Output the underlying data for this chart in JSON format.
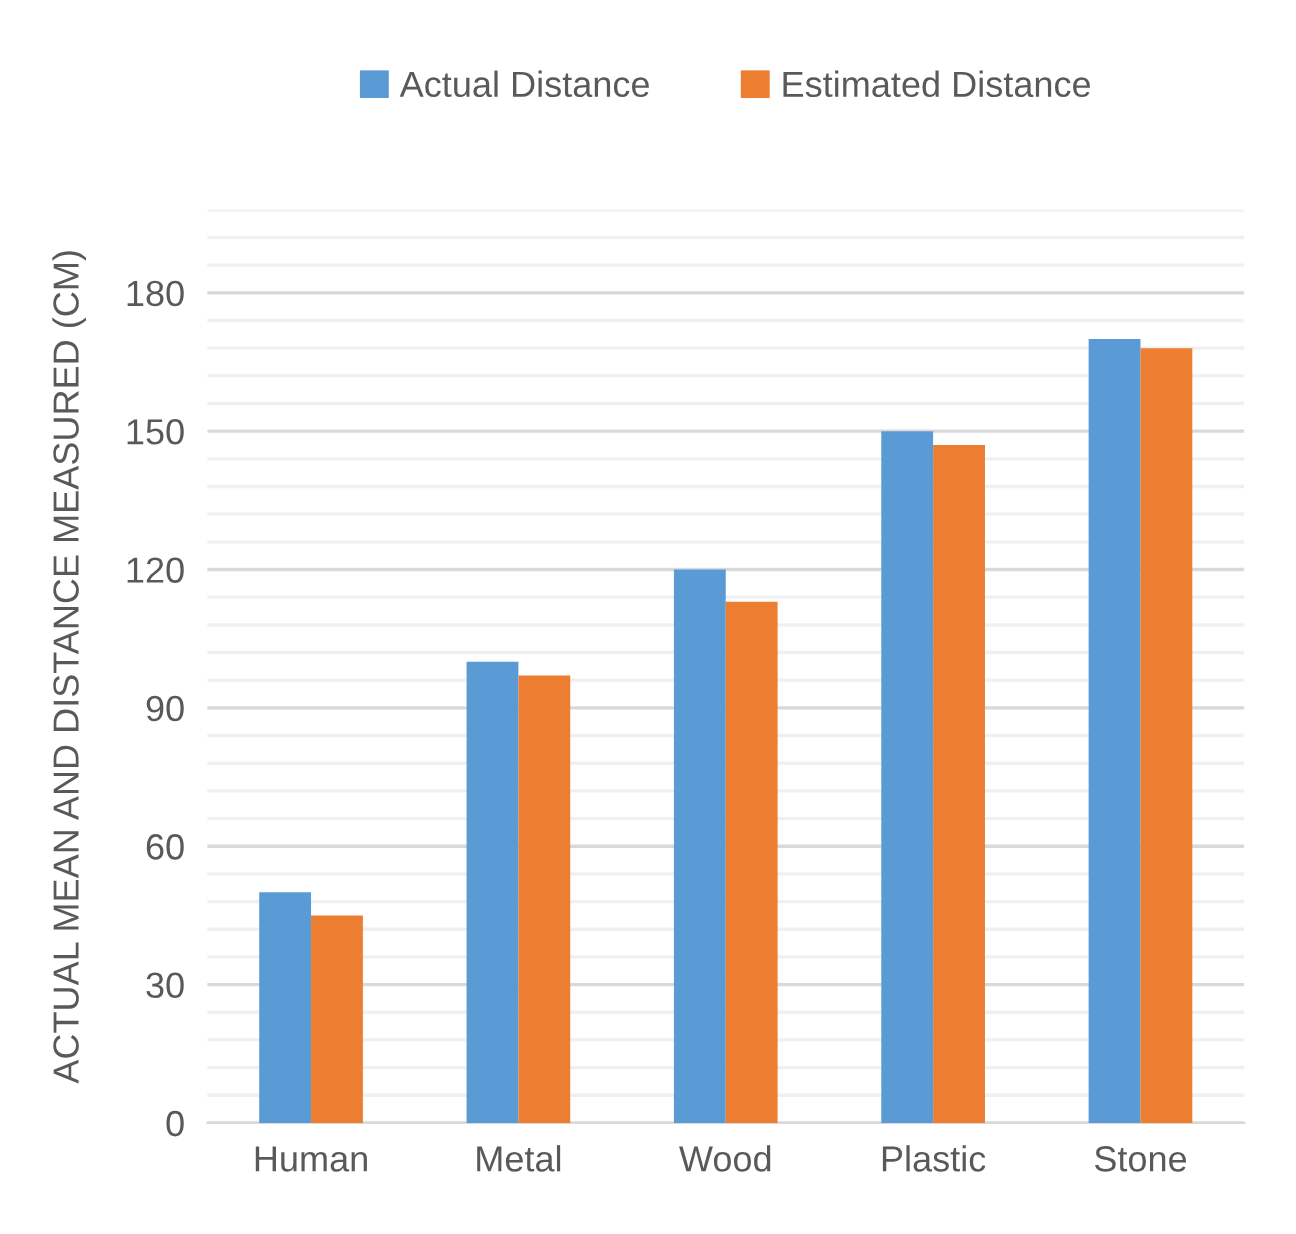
{
  "chart_data": {
    "type": "bar",
    "ylabel": "ACTUAL MEAN AND DISTANCE MEASURED (CM)",
    "categories": [
      "Human",
      "Metal",
      "Wood",
      "Plastic",
      "Stone"
    ],
    "series": [
      {
        "name": "Actual Distance",
        "color": "#5b9bd5",
        "values": [
          50,
          100,
          120,
          150,
          170
        ]
      },
      {
        "name": "Estimated Distance",
        "color": "#ed7d31",
        "values": [
          45,
          97,
          113,
          147,
          168
        ]
      }
    ],
    "ylim": [
      0,
      198
    ],
    "yticks": [
      0,
      {
        "value": 6,
        "label": null
      },
      {
        "value": 12,
        "label": null
      },
      {
        "value": 18,
        "label": null
      },
      {
        "value": 24,
        "label": null
      },
      30,
      {
        "value": 36,
        "label": null
      },
      {
        "value": 42,
        "label": null
      },
      {
        "value": 48,
        "label": null
      },
      {
        "value": 54,
        "label": null
      },
      60,
      {
        "value": 66,
        "label": null
      },
      {
        "value": 72,
        "label": null
      },
      {
        "value": 78,
        "label": null
      },
      {
        "value": 84,
        "label": null
      },
      90,
      {
        "value": 96,
        "label": null
      },
      {
        "value": 102,
        "label": null
      },
      {
        "value": 108,
        "label": null
      },
      {
        "value": 114,
        "label": null
      },
      120,
      {
        "value": 126,
        "label": null
      },
      {
        "value": 132,
        "label": null
      },
      {
        "value": 138,
        "label": null
      },
      {
        "value": 144,
        "label": null
      },
      150,
      {
        "value": 156,
        "label": null
      },
      {
        "value": 162,
        "label": null
      },
      {
        "value": 168,
        "label": null
      },
      {
        "value": 174,
        "label": null
      },
      180,
      {
        "value": 186,
        "label": null
      },
      {
        "value": 192,
        "label": null
      },
      {
        "value": 198,
        "label": null
      }
    ],
    "grid": "y",
    "legend": "top"
  }
}
